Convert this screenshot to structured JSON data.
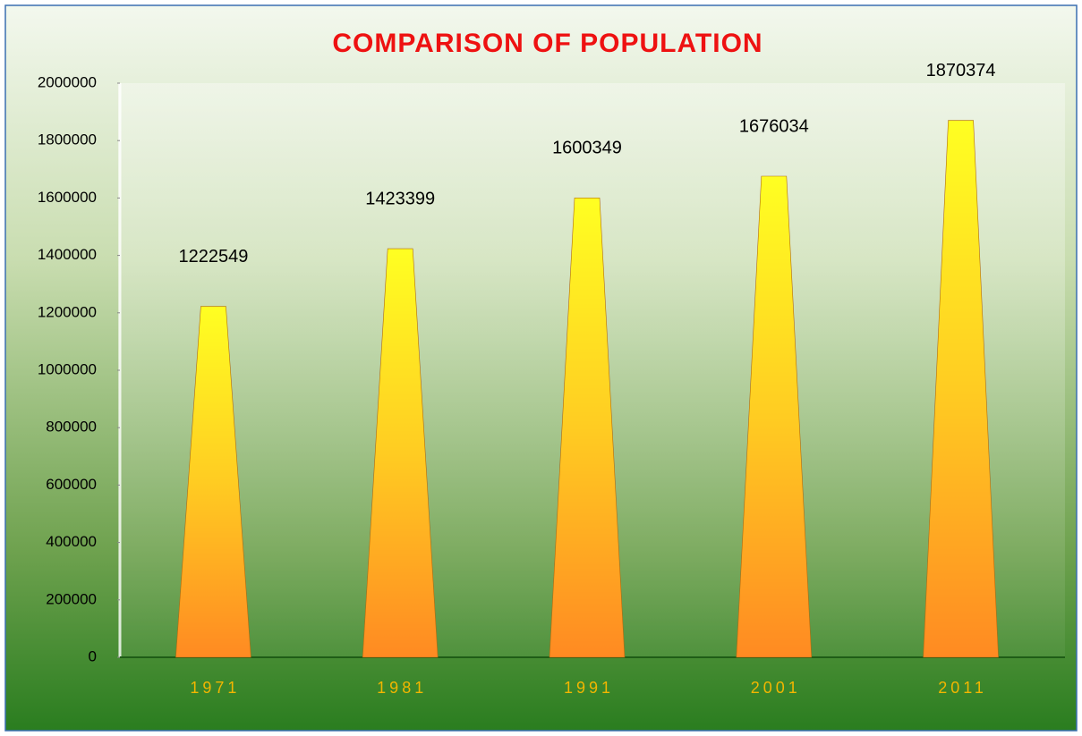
{
  "chart_data": {
    "type": "bar",
    "title": "COMPARISON OF POPULATION",
    "categories": [
      "1971",
      "1981",
      "1991",
      "2001",
      "2011"
    ],
    "values": [
      1222549,
      1423399,
      1600349,
      1676034,
      1870374
    ],
    "ylim": [
      0,
      2000000
    ],
    "yticks": [
      0,
      200000,
      400000,
      600000,
      800000,
      1000000,
      1200000,
      1400000,
      1600000,
      1800000,
      2000000
    ]
  }
}
